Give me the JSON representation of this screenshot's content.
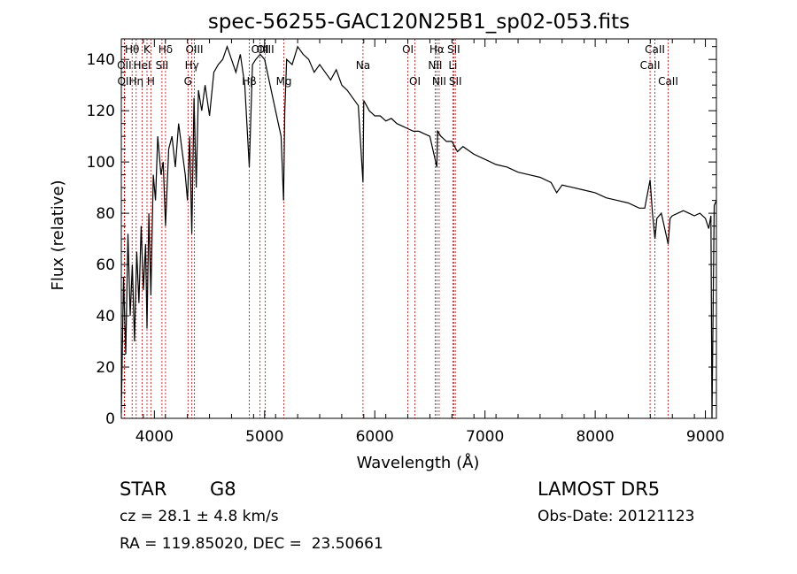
{
  "chart_data": {
    "type": "line",
    "title": "spec-56255-GAC120N25B1_sp02-053.fits",
    "xlabel": "Wavelength (Å)",
    "ylabel": "Flux (relative)",
    "xlim": [
      3700,
      9100
    ],
    "ylim": [
      0,
      148
    ],
    "xticks": [
      4000,
      5000,
      6000,
      7000,
      8000,
      9000
    ],
    "yticks": [
      0,
      20,
      40,
      60,
      80,
      100,
      120,
      140
    ],
    "grid": false,
    "line_color": "#000000",
    "marker_color": "#cc0000",
    "series": [
      {
        "x": [
          3700,
          3720,
          3740,
          3760,
          3780,
          3800,
          3820,
          3840,
          3860,
          3880,
          3900,
          3920,
          3933,
          3950,
          3968,
          3990,
          4010,
          4030,
          4060,
          4080,
          4101,
          4130,
          4160,
          4190,
          4220,
          4250,
          4280,
          4300,
          4320,
          4340,
          4360,
          4380,
          4400,
          4430,
          4460,
          4500,
          4540,
          4580,
          4620,
          4660,
          4700,
          4740,
          4780,
          4820,
          4861,
          4890,
          4920,
          4960,
          5000,
          5050,
          5100,
          5150,
          5172,
          5183,
          5200,
          5250,
          5300,
          5350,
          5400,
          5450,
          5500,
          5550,
          5600,
          5650,
          5700,
          5750,
          5800,
          5850,
          5893,
          5900,
          5950,
          6000,
          6050,
          6100,
          6150,
          6200,
          6250,
          6300,
          6350,
          6400,
          6450,
          6500,
          6563,
          6570,
          6600,
          6650,
          6700,
          6750,
          6800,
          6900,
          7000,
          7100,
          7200,
          7300,
          7400,
          7500,
          7600,
          7650,
          7700,
          7800,
          7900,
          8000,
          8100,
          8200,
          8300,
          8400,
          8450,
          8498,
          8520,
          8542,
          8560,
          8600,
          8662,
          8680,
          8700,
          8750,
          8800,
          8850,
          8900,
          8950,
          9000,
          9030,
          9050,
          9060,
          9080,
          9100
        ],
        "y": [
          2,
          55,
          25,
          72,
          40,
          60,
          30,
          65,
          45,
          75,
          50,
          68,
          35,
          80,
          48,
          95,
          85,
          110,
          95,
          100,
          75,
          105,
          110,
          98,
          115,
          105,
          95,
          85,
          110,
          72,
          125,
          90,
          128,
          120,
          130,
          118,
          135,
          138,
          140,
          145,
          140,
          135,
          142,
          130,
          98,
          138,
          140,
          142,
          140,
          130,
          120,
          110,
          85,
          120,
          140,
          138,
          145,
          142,
          140,
          135,
          138,
          135,
          132,
          136,
          130,
          128,
          125,
          122,
          92,
          124,
          120,
          118,
          118,
          116,
          117,
          115,
          114,
          113,
          112,
          112,
          111,
          110,
          98,
          112,
          110,
          108,
          108,
          104,
          106,
          103,
          101,
          99,
          98,
          96,
          95,
          94,
          92,
          88,
          91,
          90,
          89,
          88,
          86,
          85,
          84,
          82,
          82,
          93,
          80,
          70,
          78,
          80,
          68,
          78,
          79,
          80,
          81,
          80,
          79,
          80,
          78,
          74,
          79,
          0,
          83,
          85
        ]
      }
    ],
    "lines": [
      {
        "label": "Hθ",
        "wavelength": 3798,
        "row": 0
      },
      {
        "label": "K",
        "wavelength": 3933,
        "row": 0
      },
      {
        "label": "Hδ",
        "wavelength": 4101,
        "row": 0
      },
      {
        "label": "OII",
        "wavelength": 3727,
        "row": 1
      },
      {
        "label": "HeI",
        "wavelength": 3889,
        "row": 1
      },
      {
        "label": "SII",
        "wavelength": 4069,
        "row": 1
      },
      {
        "label": "OII",
        "wavelength": 3730,
        "row": 2
      },
      {
        "label": "Hη",
        "wavelength": 3835,
        "row": 2
      },
      {
        "label": "H",
        "wavelength": 3968,
        "row": 2
      },
      {
        "label": "OIII",
        "wavelength": 4363,
        "row": 0
      },
      {
        "label": "Hγ",
        "wavelength": 4340,
        "row": 1
      },
      {
        "label": "G",
        "wavelength": 4305,
        "row": 2
      },
      {
        "label": "OIII",
        "wavelength": 4959,
        "row": 0
      },
      {
        "label": "OIII",
        "wavelength": 5007,
        "row": 0
      },
      {
        "label": "Hβ",
        "wavelength": 4861,
        "row": 2
      },
      {
        "label": "Mg",
        "wavelength": 5175,
        "row": 2
      },
      {
        "label": "Na",
        "wavelength": 5893,
        "row": 1
      },
      {
        "label": "OI",
        "wavelength": 6300,
        "row": 0
      },
      {
        "label": "OI",
        "wavelength": 6364,
        "row": 2
      },
      {
        "label": "Hα",
        "wavelength": 6563,
        "row": 0
      },
      {
        "label": "SII",
        "wavelength": 6716,
        "row": 0
      },
      {
        "label": "NII",
        "wavelength": 6548,
        "row": 1
      },
      {
        "label": "Li",
        "wavelength": 6708,
        "row": 1
      },
      {
        "label": "NII",
        "wavelength": 6584,
        "row": 2
      },
      {
        "label": "SII",
        "wavelength": 6731,
        "row": 2
      },
      {
        "label": "CaII",
        "wavelength": 8542,
        "row": 0
      },
      {
        "label": "CaII",
        "wavelength": 8498,
        "row": 1
      },
      {
        "label": "CaII",
        "wavelength": 8662,
        "row": 2
      }
    ]
  },
  "info": {
    "class": "STAR",
    "subclass": "G8",
    "redshift": "cz = 28.1 ± 4.8 km/s",
    "coords": "RA = 119.85020, DEC =  23.50661",
    "survey": "LAMOST DR5",
    "obs_date": "Obs-Date: 20121123"
  }
}
